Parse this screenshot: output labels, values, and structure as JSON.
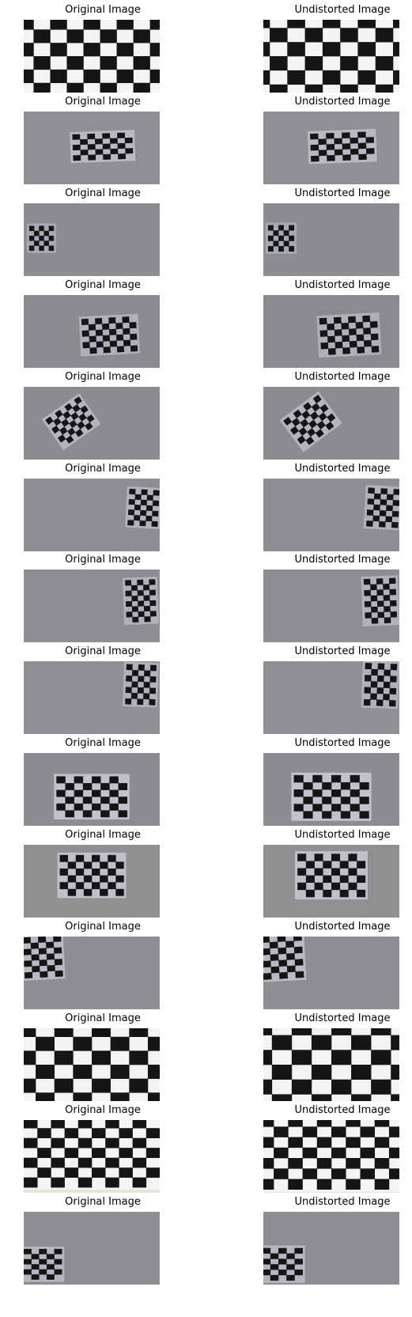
{
  "rows": [
    {
      "left_title": "Original Image",
      "right_title": "Undistorted Image"
    },
    {
      "left_title": "Original Image",
      "right_title": "Undistorted Image"
    },
    {
      "left_title": "Original Image",
      "right_title": "Undistorted Image"
    },
    {
      "left_title": "Original Image",
      "right_title": "Undistorted Image"
    },
    {
      "left_title": "Original Image",
      "right_title": "Undistorted Image"
    },
    {
      "left_title": "Original Image",
      "right_title": "Undistorted Image"
    },
    {
      "left_title": "Original Image",
      "right_title": "Undistorted Image"
    },
    {
      "left_title": "Original Image",
      "right_title": "Undistorted Image"
    },
    {
      "left_title": "Original Image",
      "right_title": "Undistorted Image"
    },
    {
      "left_title": "Original Image",
      "right_title": "Undistorted Image"
    },
    {
      "left_title": "Original Image",
      "right_title": "Undistorted Image"
    },
    {
      "left_title": "Original Image",
      "right_title": "Undistorted Image"
    },
    {
      "left_title": "Original Image",
      "right_title": "Undistorted Image"
    },
    {
      "left_title": "Original Image",
      "right_title": "Undistorted Image"
    }
  ]
}
